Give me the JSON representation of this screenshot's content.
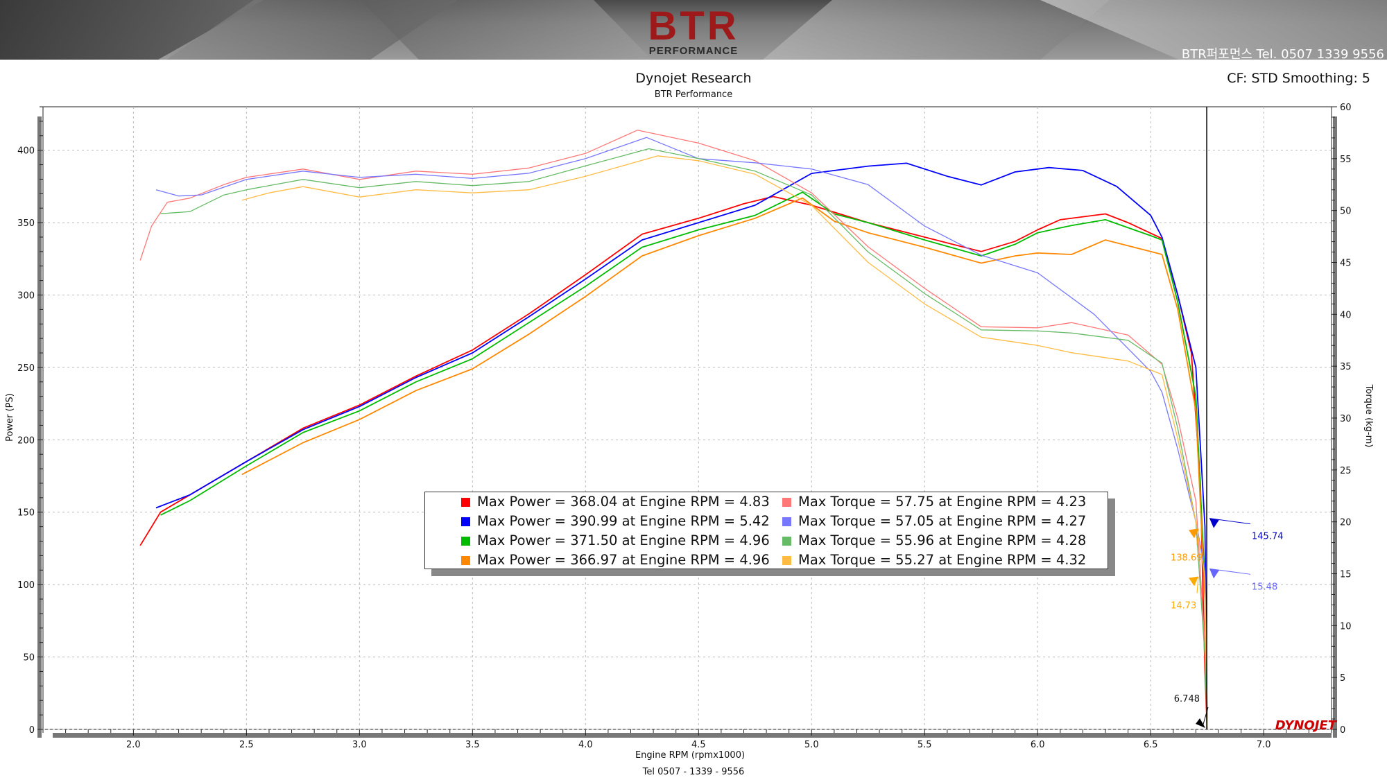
{
  "banner": {
    "logo_text": "BTR",
    "logo_subtext": "PERFORMANCE",
    "contact": "BTR퍼포먼스 Tel. 0507 1339 9556"
  },
  "header": {
    "title": "Dynojet Research",
    "subtitle": "BTR Performance",
    "correction": "CF: STD Smoothing: 5"
  },
  "footer": {
    "contact": "Tel  0507 - 1339 - 9556"
  },
  "colors": {
    "run1_power": "#ff0000",
    "run2_power": "#0000ff",
    "run3_power": "#00bb00",
    "run4_power": "#ff8800",
    "run1_torque": "#ff7777",
    "run2_torque": "#7777ff",
    "run3_torque": "#66bb66",
    "run4_torque": "#ffbb44",
    "dynojet_logo": "#cc0000"
  },
  "watermark": "DYNOJET",
  "chart_data": {
    "type": "line",
    "xlabel": "Engine RPM (rpmx1000)",
    "ylabel": "Power (PS)",
    "y2label": "Torque (kg-m)",
    "xlim": [
      1.6,
      7.3
    ],
    "ylim": [
      0,
      430
    ],
    "y2lim": [
      0,
      60
    ],
    "xticks": [
      2.0,
      2.5,
      3.0,
      3.5,
      4.0,
      4.5,
      5.0,
      5.5,
      6.0,
      6.5,
      7.0
    ],
    "xtick_labels": [
      "2.0",
      "2.5",
      "3.0",
      "3.5",
      "4.0",
      "4.5",
      "5.0",
      "5.5",
      "6.0",
      "6.5",
      "7.0"
    ],
    "yticks": [
      0,
      50,
      100,
      150,
      200,
      250,
      300,
      350,
      400
    ],
    "ytick_labels": [
      "0",
      "50",
      "100",
      "150",
      "200",
      "250",
      "300",
      "350",
      "400"
    ],
    "y2ticks": [
      0,
      5,
      10,
      15,
      20,
      25,
      30,
      35,
      40,
      45,
      50,
      55,
      60
    ],
    "y2tick_labels": [
      "0",
      "5",
      "10",
      "15",
      "20",
      "25",
      "30",
      "35",
      "40",
      "45",
      "50",
      "55",
      "60"
    ],
    "grid": true,
    "cursor_rpm": 6.748,
    "cursor_label": "6.748",
    "series": [
      {
        "axis": "left",
        "color": "#ff0000",
        "points": [
          [
            2.03,
            127
          ],
          [
            2.12,
            150
          ],
          [
            2.25,
            162
          ],
          [
            2.5,
            185
          ],
          [
            2.75,
            208
          ],
          [
            3.0,
            224
          ],
          [
            3.25,
            244
          ],
          [
            3.5,
            262
          ],
          [
            3.75,
            287
          ],
          [
            4.0,
            314
          ],
          [
            4.25,
            342
          ],
          [
            4.5,
            353
          ],
          [
            4.7,
            363
          ],
          [
            4.83,
            368
          ],
          [
            5.0,
            362
          ],
          [
            5.25,
            350
          ],
          [
            5.5,
            340
          ],
          [
            5.75,
            330
          ],
          [
            5.9,
            337
          ],
          [
            6.0,
            345
          ],
          [
            6.1,
            352
          ],
          [
            6.3,
            356
          ],
          [
            6.4,
            350
          ],
          [
            6.55,
            339
          ],
          [
            6.62,
            300
          ],
          [
            6.68,
            260
          ],
          [
            6.72,
            170
          ],
          [
            6.74,
            40
          ],
          [
            6.75,
            0
          ]
        ]
      },
      {
        "axis": "left",
        "color": "#0000ff",
        "points": [
          [
            2.1,
            153
          ],
          [
            2.25,
            162
          ],
          [
            2.5,
            185
          ],
          [
            2.75,
            207
          ],
          [
            3.0,
            223
          ],
          [
            3.25,
            243
          ],
          [
            3.5,
            260
          ],
          [
            3.75,
            285
          ],
          [
            4.0,
            311
          ],
          [
            4.25,
            338
          ],
          [
            4.5,
            350
          ],
          [
            4.75,
            362
          ],
          [
            5.0,
            384
          ],
          [
            5.25,
            389
          ],
          [
            5.42,
            391
          ],
          [
            5.6,
            382
          ],
          [
            5.75,
            376
          ],
          [
            5.9,
            385
          ],
          [
            6.05,
            388
          ],
          [
            6.2,
            386
          ],
          [
            6.35,
            375
          ],
          [
            6.5,
            355
          ],
          [
            6.55,
            340
          ],
          [
            6.62,
            300
          ],
          [
            6.7,
            250
          ],
          [
            6.74,
            140
          ],
          [
            6.75,
            0
          ]
        ]
      },
      {
        "axis": "left",
        "color": "#00bb00",
        "points": [
          [
            2.12,
            148
          ],
          [
            2.25,
            158
          ],
          [
            2.5,
            182
          ],
          [
            2.75,
            205
          ],
          [
            3.0,
            220
          ],
          [
            3.25,
            240
          ],
          [
            3.5,
            256
          ],
          [
            3.75,
            281
          ],
          [
            4.0,
            306
          ],
          [
            4.25,
            333
          ],
          [
            4.5,
            345
          ],
          [
            4.75,
            355
          ],
          [
            4.96,
            371
          ],
          [
            5.1,
            356
          ],
          [
            5.25,
            350
          ],
          [
            5.5,
            338
          ],
          [
            5.75,
            327
          ],
          [
            5.9,
            335
          ],
          [
            6.0,
            343
          ],
          [
            6.15,
            348
          ],
          [
            6.3,
            352
          ],
          [
            6.5,
            341
          ],
          [
            6.55,
            338
          ],
          [
            6.62,
            295
          ],
          [
            6.7,
            230
          ],
          [
            6.74,
            100
          ],
          [
            6.75,
            0
          ]
        ]
      },
      {
        "axis": "left",
        "color": "#ff8800",
        "points": [
          [
            2.48,
            176
          ],
          [
            2.75,
            198
          ],
          [
            3.0,
            214
          ],
          [
            3.25,
            234
          ],
          [
            3.5,
            249
          ],
          [
            3.75,
            273
          ],
          [
            4.0,
            299
          ],
          [
            4.25,
            327
          ],
          [
            4.5,
            341
          ],
          [
            4.75,
            353
          ],
          [
            4.96,
            367
          ],
          [
            5.1,
            351
          ],
          [
            5.25,
            343
          ],
          [
            5.5,
            333
          ],
          [
            5.75,
            322
          ],
          [
            5.9,
            327
          ],
          [
            6.0,
            329
          ],
          [
            6.15,
            328
          ],
          [
            6.3,
            338
          ],
          [
            6.5,
            330
          ],
          [
            6.55,
            328
          ],
          [
            6.62,
            290
          ],
          [
            6.7,
            220
          ],
          [
            6.74,
            90
          ],
          [
            6.75,
            0
          ]
        ]
      },
      {
        "axis": "right",
        "color": "#ff7777",
        "points": [
          [
            2.03,
            45.2
          ],
          [
            2.08,
            48.5
          ],
          [
            2.15,
            50.8
          ],
          [
            2.25,
            51.2
          ],
          [
            2.4,
            52.5
          ],
          [
            2.5,
            53.2
          ],
          [
            2.75,
            54.0
          ],
          [
            3.0,
            53.0
          ],
          [
            3.25,
            53.8
          ],
          [
            3.5,
            53.5
          ],
          [
            3.75,
            54.1
          ],
          [
            4.0,
            55.5
          ],
          [
            4.23,
            57.75
          ],
          [
            4.5,
            56.5
          ],
          [
            4.75,
            54.8
          ],
          [
            5.0,
            51.7
          ],
          [
            5.25,
            46.5
          ],
          [
            5.5,
            42.5
          ],
          [
            5.75,
            38.8
          ],
          [
            6.0,
            38.7
          ],
          [
            6.15,
            39.2
          ],
          [
            6.4,
            38.0
          ],
          [
            6.55,
            35.2
          ],
          [
            6.62,
            30.0
          ],
          [
            6.7,
            22.0
          ],
          [
            6.74,
            8.0
          ],
          [
            6.75,
            0.0
          ]
        ]
      },
      {
        "axis": "right",
        "color": "#7777ff",
        "points": [
          [
            2.1,
            52.0
          ],
          [
            2.2,
            51.4
          ],
          [
            2.3,
            51.5
          ],
          [
            2.5,
            53.0
          ],
          [
            2.75,
            53.8
          ],
          [
            3.0,
            53.2
          ],
          [
            3.25,
            53.5
          ],
          [
            3.5,
            53.1
          ],
          [
            3.75,
            53.6
          ],
          [
            4.0,
            55.0
          ],
          [
            4.27,
            57.05
          ],
          [
            4.5,
            55.0
          ],
          [
            4.75,
            54.6
          ],
          [
            5.0,
            54.0
          ],
          [
            5.25,
            52.5
          ],
          [
            5.5,
            48.5
          ],
          [
            5.75,
            45.7
          ],
          [
            6.0,
            44.0
          ],
          [
            6.25,
            40.0
          ],
          [
            6.5,
            34.5
          ],
          [
            6.55,
            32.5
          ],
          [
            6.62,
            27.0
          ],
          [
            6.7,
            20.0
          ],
          [
            6.74,
            15.5
          ],
          [
            6.75,
            0.0
          ]
        ]
      },
      {
        "axis": "right",
        "color": "#66bb66",
        "points": [
          [
            2.12,
            49.7
          ],
          [
            2.25,
            49.9
          ],
          [
            2.4,
            51.5
          ],
          [
            2.5,
            52.0
          ],
          [
            2.75,
            53.0
          ],
          [
            3.0,
            52.2
          ],
          [
            3.25,
            52.8
          ],
          [
            3.5,
            52.4
          ],
          [
            3.75,
            52.8
          ],
          [
            4.0,
            54.3
          ],
          [
            4.28,
            55.96
          ],
          [
            4.5,
            55.0
          ],
          [
            4.75,
            53.8
          ],
          [
            5.0,
            51.5
          ],
          [
            5.25,
            46.0
          ],
          [
            5.5,
            42.0
          ],
          [
            5.75,
            38.5
          ],
          [
            6.0,
            38.4
          ],
          [
            6.15,
            38.2
          ],
          [
            6.4,
            37.5
          ],
          [
            6.55,
            35.3
          ],
          [
            6.62,
            29.0
          ],
          [
            6.7,
            20.0
          ],
          [
            6.74,
            7.0
          ],
          [
            6.75,
            0.0
          ]
        ]
      },
      {
        "axis": "right",
        "color": "#ffbb44",
        "points": [
          [
            2.48,
            51.0
          ],
          [
            2.6,
            51.7
          ],
          [
            2.75,
            52.3
          ],
          [
            3.0,
            51.3
          ],
          [
            3.25,
            52.0
          ],
          [
            3.5,
            51.7
          ],
          [
            3.75,
            52.0
          ],
          [
            4.0,
            53.3
          ],
          [
            4.32,
            55.27
          ],
          [
            4.5,
            54.8
          ],
          [
            4.75,
            53.5
          ],
          [
            5.0,
            50.5
          ],
          [
            5.25,
            45.0
          ],
          [
            5.5,
            41.0
          ],
          [
            5.75,
            37.8
          ],
          [
            6.0,
            37.0
          ],
          [
            6.15,
            36.3
          ],
          [
            6.4,
            35.5
          ],
          [
            6.55,
            34.2
          ],
          [
            6.62,
            28.0
          ],
          [
            6.7,
            20.0
          ],
          [
            6.74,
            14.7
          ],
          [
            6.75,
            0.0
          ]
        ]
      }
    ],
    "legend_power": [
      {
        "color": "#ff0000",
        "text": "Max Power = 368.04 at Engine RPM = 4.83"
      },
      {
        "color": "#0000ff",
        "text": "Max Power = 390.99 at Engine RPM = 5.42"
      },
      {
        "color": "#00bb00",
        "text": "Max Power = 371.50 at Engine RPM = 4.96"
      },
      {
        "color": "#ff8800",
        "text": "Max Power = 366.97 at Engine RPM = 4.96"
      }
    ],
    "legend_torque": [
      {
        "color": "#ff7777",
        "text": "Max Torque = 57.75 at Engine RPM = 4.23"
      },
      {
        "color": "#7777ff",
        "text": "Max Torque = 57.05 at Engine RPM = 4.27"
      },
      {
        "color": "#66bb66",
        "text": "Max Torque = 55.96 at Engine RPM = 4.28"
      },
      {
        "color": "#ffbb44",
        "text": "Max Torque = 55.27 at Engine RPM = 4.32"
      }
    ],
    "annotations": [
      {
        "text": "145.74",
        "axis": "left",
        "value": 145.74,
        "color": "#0000cc"
      },
      {
        "text": "138.69",
        "axis": "left",
        "value": 138.69,
        "color": "#ff9900"
      },
      {
        "text": "15.48",
        "axis": "right",
        "value": 15.48,
        "color": "#6666ff"
      },
      {
        "text": "14.73",
        "axis": "right",
        "value": 14.73,
        "color": "#ffaa00"
      }
    ]
  }
}
